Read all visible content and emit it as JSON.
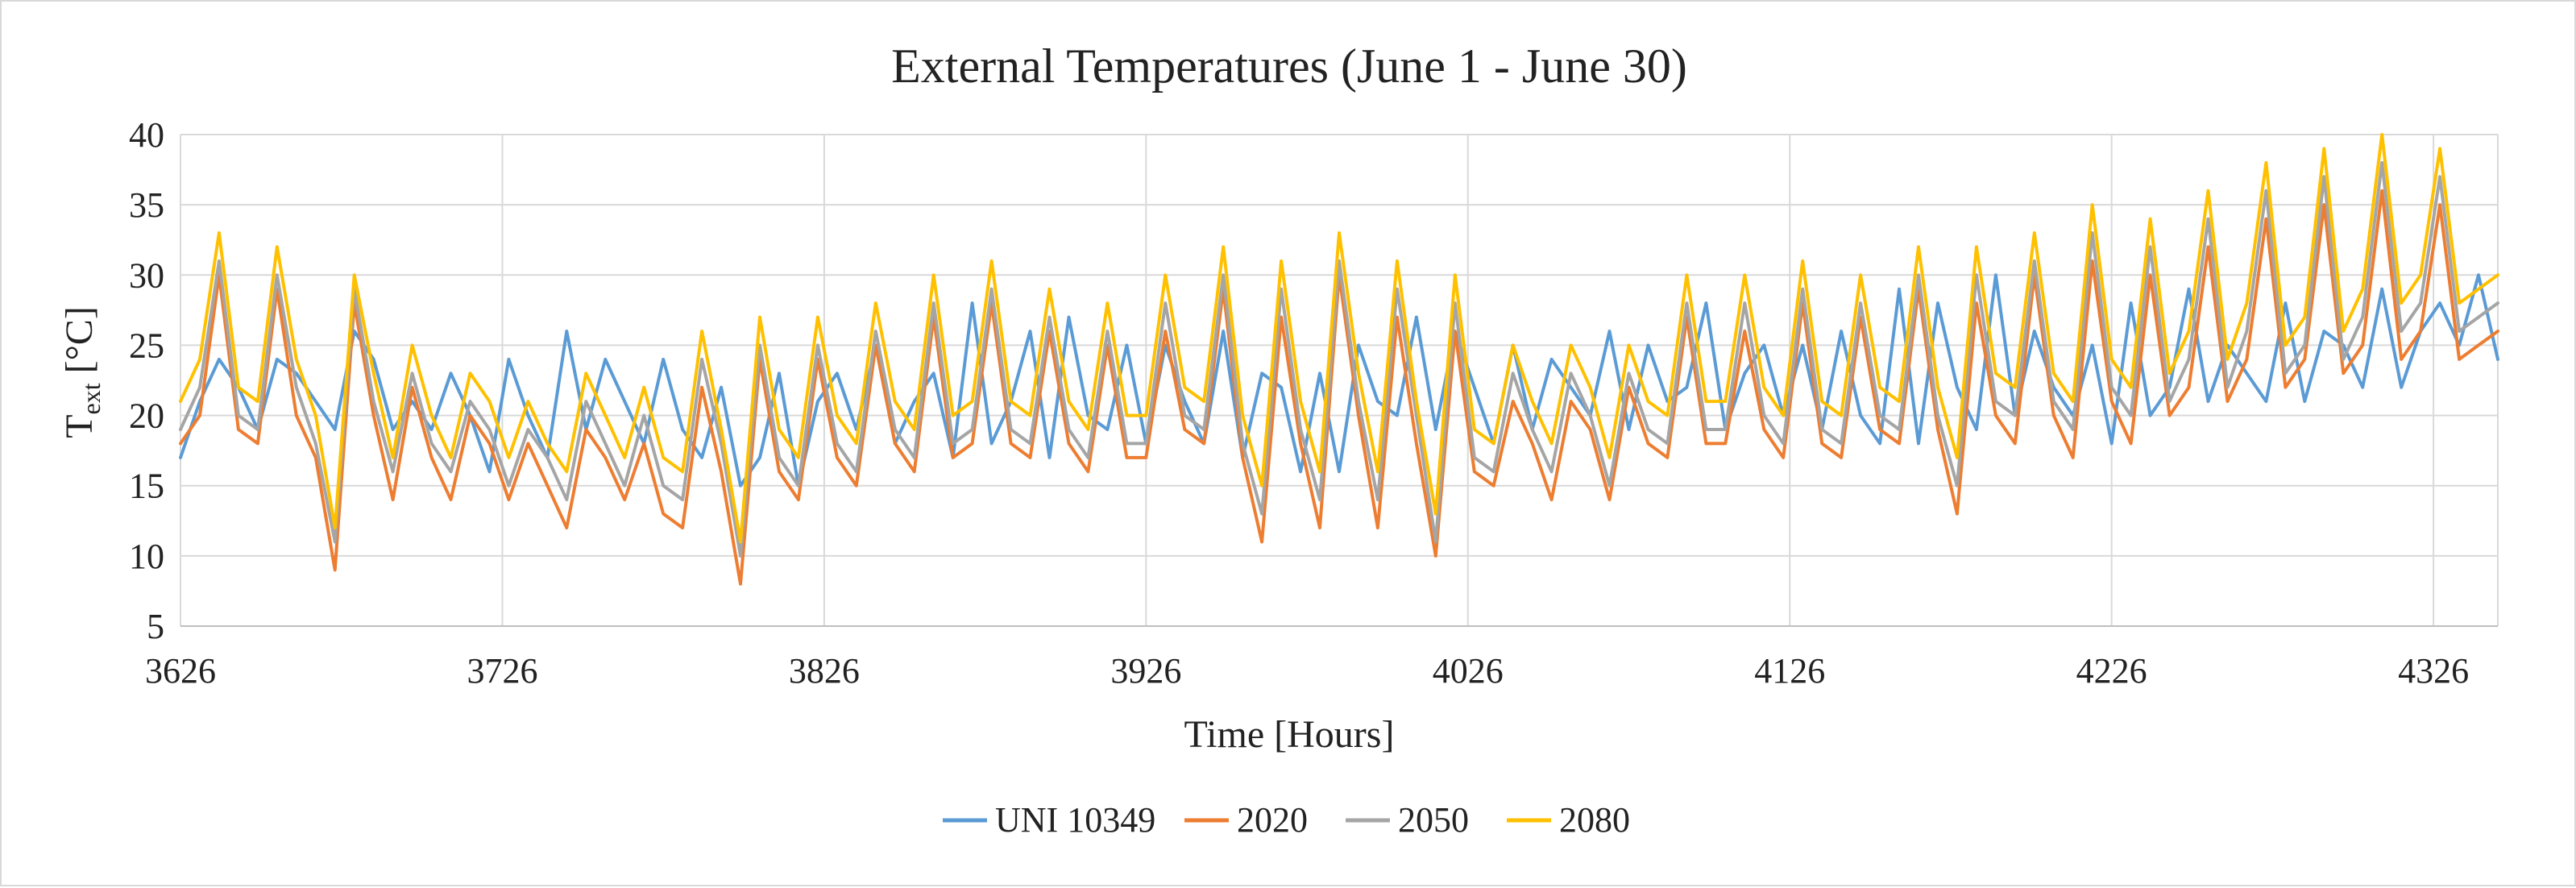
{
  "chart_data": {
    "type": "line",
    "title": "External Temperatures (June 1 - June 30)",
    "xlabel": "Time  [Hours]",
    "ylabel_main": "T",
    "ylabel_sub": "ext",
    "ylabel_unit": " [°C]",
    "xlim": [
      3626,
      4346
    ],
    "ylim": [
      5,
      40
    ],
    "x_ticks": [
      "3626",
      "3726",
      "3826",
      "3926",
      "4026",
      "4126",
      "4226",
      "4326"
    ],
    "y_ticks": [
      "40",
      "35",
      "30",
      "25",
      "20",
      "15",
      "10",
      "5"
    ],
    "grid": true,
    "legend_position": "bottom",
    "x": [
      3626,
      3632,
      3638,
      3644,
      3650,
      3656,
      3662,
      3668,
      3674,
      3680,
      3686,
      3692,
      3698,
      3704,
      3710,
      3716,
      3722,
      3728,
      3734,
      3740,
      3746,
      3752,
      3758,
      3764,
      3770,
      3776,
      3782,
      3788,
      3794,
      3800,
      3806,
      3812,
      3818,
      3824,
      3830,
      3836,
      3842,
      3848,
      3854,
      3860,
      3866,
      3872,
      3878,
      3884,
      3890,
      3896,
      3902,
      3908,
      3914,
      3920,
      3926,
      3932,
      3938,
      3944,
      3950,
      3956,
      3962,
      3968,
      3974,
      3980,
      3986,
      3992,
      3998,
      4004,
      4010,
      4016,
      4022,
      4028,
      4034,
      4040,
      4046,
      4052,
      4058,
      4064,
      4070,
      4076,
      4082,
      4088,
      4094,
      4100,
      4106,
      4112,
      4118,
      4124,
      4130,
      4136,
      4142,
      4148,
      4154,
      4160,
      4166,
      4172,
      4178,
      4184,
      4190,
      4196,
      4202,
      4208,
      4214,
      4220,
      4226,
      4232,
      4238,
      4244,
      4250,
      4256,
      4262,
      4268,
      4274,
      4280,
      4286,
      4292,
      4298,
      4304,
      4310,
      4316,
      4322,
      4328,
      4334,
      4340,
      4346
    ],
    "series": [
      {
        "name": "UNI 10349",
        "color": "#5b9bd5",
        "values": [
          17,
          21,
          24,
          22,
          19,
          24,
          23,
          21,
          19,
          26,
          24,
          19,
          21,
          19,
          23,
          20,
          16,
          24,
          20,
          17,
          26,
          19,
          24,
          21,
          18,
          24,
          19,
          17,
          22,
          15,
          17,
          23,
          15,
          21,
          23,
          19,
          25,
          18,
          21,
          23,
          17,
          28,
          18,
          21,
          26,
          17,
          27,
          20,
          19,
          25,
          18,
          25,
          21,
          18,
          26,
          17,
          23,
          22,
          16,
          23,
          16,
          25,
          21,
          20,
          27,
          19,
          26,
          22,
          18,
          25,
          19,
          24,
          22,
          20,
          26,
          19,
          25,
          21,
          22,
          28,
          19,
          23,
          25,
          20,
          25,
          19,
          26,
          20,
          18,
          29,
          18,
          28,
          22,
          19,
          30,
          20,
          26,
          22,
          20,
          25,
          18,
          28,
          20,
          22,
          29,
          21,
          25,
          23,
          21,
          28,
          21,
          26,
          25,
          22,
          29,
          22,
          26,
          28,
          25,
          30,
          24
        ]
      },
      {
        "name": "2020",
        "color": "#ed7d31",
        "values": [
          18,
          20,
          30,
          19,
          18,
          29,
          20,
          17,
          9,
          28,
          20,
          14,
          22,
          17,
          14,
          20,
          18,
          14,
          18,
          15,
          12,
          19,
          17,
          14,
          18,
          13,
          12,
          22,
          16,
          8,
          24,
          16,
          14,
          24,
          17,
          15,
          25,
          18,
          16,
          27,
          17,
          18,
          28,
          18,
          17,
          26,
          18,
          16,
          25,
          17,
          17,
          26,
          19,
          18,
          29,
          17,
          11,
          27,
          18,
          12,
          30,
          20,
          12,
          27,
          18,
          10,
          26,
          16,
          15,
          21,
          18,
          14,
          21,
          19,
          14,
          22,
          18,
          17,
          27,
          18,
          18,
          26,
          19,
          17,
          28,
          18,
          17,
          27,
          19,
          18,
          29,
          19,
          13,
          28,
          20,
          18,
          30,
          20,
          17,
          31,
          21,
          18,
          30,
          20,
          22,
          32,
          21,
          24,
          34,
          22,
          24,
          35,
          23,
          25,
          36,
          24,
          26,
          35,
          24,
          25,
          26
        ]
      },
      {
        "name": "2050",
        "color": "#a5a5a5",
        "values": [
          19,
          22,
          31,
          20,
          19,
          30,
          22,
          18,
          11,
          29,
          21,
          16,
          23,
          18,
          16,
          21,
          19,
          15,
          19,
          17,
          14,
          21,
          18,
          15,
          20,
          15,
          14,
          24,
          18,
          10,
          25,
          17,
          15,
          25,
          18,
          16,
          26,
          19,
          17,
          28,
          18,
          19,
          29,
          19,
          18,
          27,
          19,
          17,
          26,
          18,
          18,
          28,
          20,
          19,
          30,
          18,
          13,
          29,
          19,
          14,
          31,
          21,
          14,
          29,
          20,
          11,
          28,
          17,
          16,
          23,
          19,
          16,
          23,
          20,
          15,
          23,
          19,
          18,
          28,
          19,
          19,
          28,
          20,
          18,
          29,
          19,
          18,
          28,
          20,
          19,
          30,
          20,
          15,
          30,
          21,
          20,
          31,
          21,
          19,
          33,
          22,
          20,
          32,
          21,
          24,
          34,
          22,
          26,
          36,
          23,
          25,
          37,
          24,
          27,
          38,
          26,
          28,
          37,
          26,
          27,
          28
        ]
      },
      {
        "name": "2080",
        "color": "#ffc000",
        "values": [
          21,
          24,
          33,
          22,
          21,
          32,
          24,
          20,
          12,
          30,
          23,
          17,
          25,
          20,
          17,
          23,
          21,
          17,
          21,
          18,
          16,
          23,
          20,
          17,
          22,
          17,
          16,
          26,
          19,
          11,
          27,
          19,
          17,
          27,
          20,
          18,
          28,
          21,
          19,
          30,
          20,
          21,
          31,
          21,
          20,
          29,
          21,
          19,
          28,
          20,
          20,
          30,
          22,
          21,
          32,
          20,
          15,
          31,
          21,
          16,
          33,
          23,
          16,
          31,
          21,
          13,
          30,
          19,
          18,
          25,
          21,
          18,
          25,
          22,
          17,
          25,
          21,
          20,
          30,
          21,
          21,
          30,
          22,
          20,
          31,
          21,
          20,
          30,
          22,
          21,
          32,
          22,
          17,
          32,
          23,
          22,
          33,
          23,
          21,
          35,
          24,
          22,
          34,
          23,
          26,
          36,
          24,
          28,
          38,
          25,
          27,
          39,
          26,
          29,
          40,
          28,
          30,
          39,
          28,
          29,
          30
        ]
      }
    ]
  }
}
